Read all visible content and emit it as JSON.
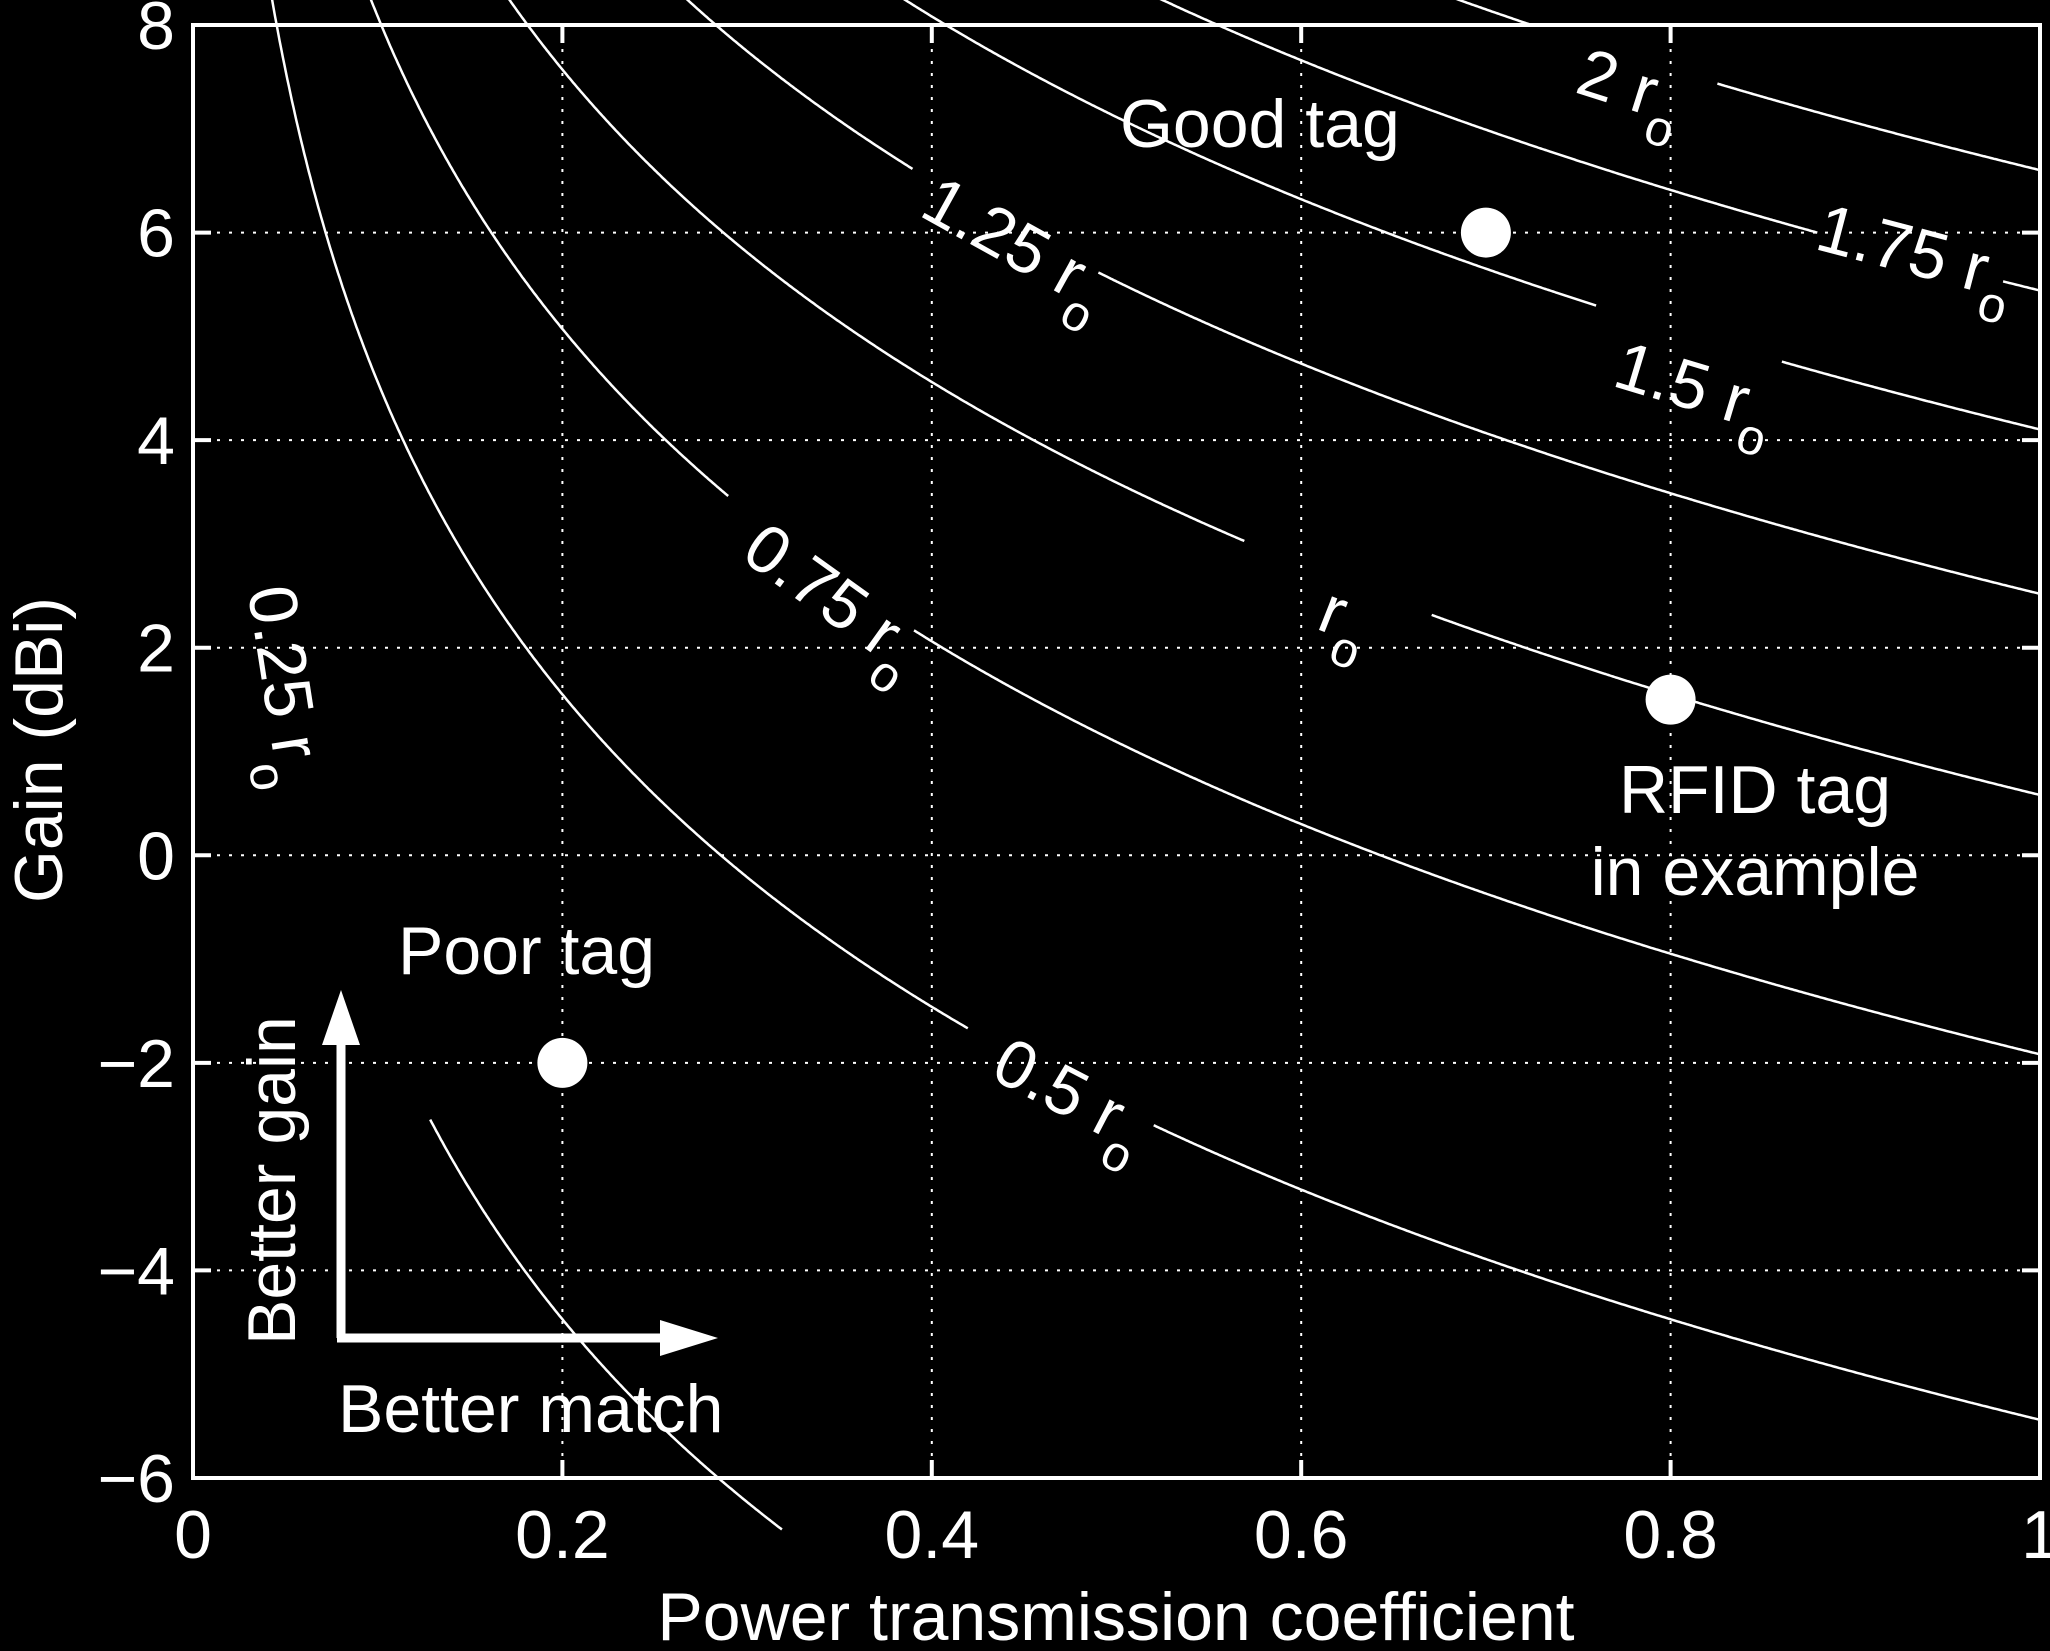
{
  "chart_data": {
    "type": "line",
    "title": "",
    "xlabel": "Power transmission coefficient",
    "ylabel": "Gain (dBi)",
    "xlim": [
      0,
      1
    ],
    "ylim": [
      -6,
      8
    ],
    "grid": true,
    "grid_style": "dotted",
    "background": "#000000",
    "foreground": "#ffffff",
    "x_ticks": [
      "0",
      "0.2",
      "0.4",
      "0.6",
      "0.8",
      "1"
    ],
    "y_ticks": [
      "−6",
      "−4",
      "−2",
      "0",
      "2",
      "4",
      "6",
      "8"
    ],
    "x_tick_values": [
      0,
      0.2,
      0.4,
      0.6,
      0.8,
      1
    ],
    "y_tick_values": [
      -6,
      -4,
      -2,
      0,
      2,
      4,
      6,
      8
    ],
    "series": [
      {
        "name": "0.25 r",
        "sub": "o",
        "factor": 0.25,
        "label_at": [
          0.038,
          1.6
        ]
      },
      {
        "name": "0.5 r",
        "sub": "o",
        "factor": 0.5,
        "label_at": [
          0.47,
          -2.5
        ]
      },
      {
        "name": "0.75 r",
        "sub": "o",
        "factor": 0.75,
        "label_at": [
          0.34,
          2.3
        ]
      },
      {
        "name": "r",
        "sub": "o",
        "factor": 1.0,
        "label_at": [
          0.62,
          2.1
        ]
      },
      {
        "name": "1.25 r",
        "sub": "o",
        "factor": 1.25,
        "label_at": [
          0.44,
          5.7
        ]
      },
      {
        "name": "1.5 r",
        "sub": "o",
        "factor": 1.5,
        "label_at": [
          0.81,
          4.3
        ]
      },
      {
        "name": "1.75 r",
        "sub": "o",
        "factor": 1.75,
        "label_at": [
          0.93,
          5.6
        ]
      },
      {
        "name": "2 r",
        "sub": "o",
        "factor": 2.0,
        "label_at": [
          0.775,
          7.2
        ]
      }
    ],
    "points": [
      {
        "label": "Good tag",
        "x": 0.7,
        "y": 6
      },
      {
        "label": "Poor tag",
        "x": 0.2,
        "y": -2
      },
      {
        "label": "RFID tag in example",
        "x": 0.8,
        "y": 1.5
      }
    ],
    "annotations": {
      "good_tag": "Good tag",
      "poor_tag": "Poor tag",
      "rfid_line1": "RFID tag",
      "rfid_line2": "in example",
      "better_gain": "Better gain",
      "better_match": "Better match"
    }
  }
}
